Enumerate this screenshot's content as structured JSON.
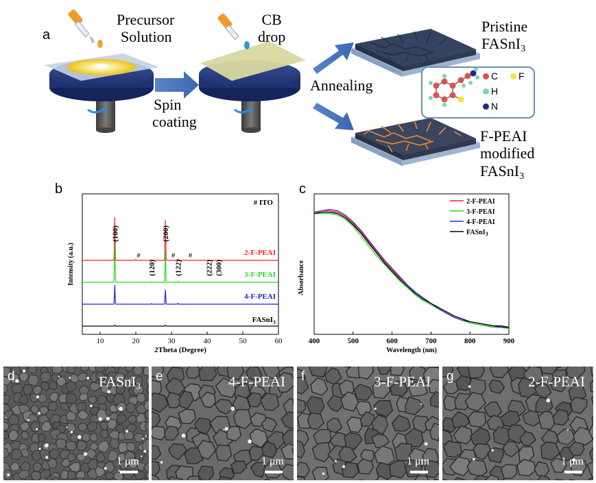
{
  "panel_a": {
    "letter": "a",
    "precursor_line1": "Precursor",
    "precursor_line2": "Solution",
    "spin_line1": "Spin",
    "spin_line2": "coating",
    "cb_line1": "CB",
    "cb_line2": "drop",
    "annealing": "Annealing",
    "pristine_line1": "Pristine",
    "pristine_line2_main": "FASnI",
    "pristine_line2_sub": "3",
    "modified_line1": "F-PEAI",
    "modified_line2": "modified",
    "modified_line3_main": "FASnI",
    "modified_line3_sub": "3",
    "molecule_legend": [
      {
        "label": "C",
        "color": "#d9534f"
      },
      {
        "label": "F",
        "color": "#f5e142"
      },
      {
        "label": "H",
        "color": "#7fd6a8"
      },
      {
        "label": "N",
        "color": "#1f2a8a"
      }
    ]
  },
  "chart_data": [
    {
      "type": "line",
      "panel": "b",
      "title": "",
      "xlabel": "2Theta (Degree)",
      "ylabel": "Intensity (a.u.)",
      "xlim": [
        5,
        60
      ],
      "xticks": [
        10,
        20,
        30,
        40,
        50,
        60
      ],
      "grid": false,
      "series": [
        {
          "name": "2-F-PEAI",
          "color": "#ff2020",
          "baseline": 4,
          "peaks": [
            [
              14.1,
              2.35
            ],
            [
              20.0,
              0.05
            ],
            [
              24.4,
              0.03
            ],
            [
              28.3,
              2.2
            ],
            [
              31.8,
              0.08
            ],
            [
              40.5,
              0.02
            ],
            [
              43.2,
              0.02
            ]
          ]
        },
        {
          "name": "3-F-PEAI",
          "color": "#22dd22",
          "baseline": 3,
          "peaks": [
            [
              14.1,
              2.1
            ],
            [
              24.4,
              0.03
            ],
            [
              28.3,
              1.75
            ],
            [
              31.8,
              0.06
            ]
          ]
        },
        {
          "name": "4-F-PEAI",
          "color": "#2222cc",
          "baseline": 2,
          "peaks": [
            [
              14.1,
              1.05
            ],
            [
              24.4,
              0.03
            ],
            [
              28.3,
              0.8
            ],
            [
              31.8,
              0.05
            ]
          ]
        },
        {
          "name": "FASnI3",
          "color": "#000000",
          "baseline": 1,
          "peaks": [
            [
              14.1,
              0.05
            ],
            [
              28.3,
              0.05
            ]
          ]
        }
      ],
      "annotations": [
        {
          "text": "(100)",
          "x": 14.1
        },
        {
          "text": "(120)",
          "x": 24.4
        },
        {
          "text": "(200)",
          "x": 28.3
        },
        {
          "text": "(122)",
          "x": 31.8
        },
        {
          "text": "(222)",
          "x": 40.5
        },
        {
          "text": "(300)",
          "x": 43.2
        }
      ],
      "ito_marks": [
        20.8,
        30.5,
        35.3
      ],
      "ito_label": "# ITO",
      "ito_symbol": "#",
      "series_labels": [
        "2-F-PEAI",
        "3-F-PEAI",
        "4-F-PEAI",
        "FASnI"
      ],
      "fasni_sub": "3"
    },
    {
      "type": "line",
      "panel": "c",
      "title": "",
      "xlabel": "Wavelength (nm)",
      "ylabel": "Absorbance",
      "xlim": [
        400,
        900
      ],
      "xticks": [
        400,
        500,
        600,
        700,
        800,
        900
      ],
      "ylim": [
        0,
        1
      ],
      "grid": false,
      "legend_position": "top-right",
      "x": [
        400,
        420,
        440,
        460,
        480,
        500,
        520,
        540,
        560,
        580,
        600,
        620,
        640,
        660,
        680,
        700,
        720,
        740,
        760,
        780,
        800,
        820,
        840,
        860,
        880,
        900
      ],
      "series": [
        {
          "name": "2-F-PEAI",
          "color": "#ff2020",
          "values": [
            0.87,
            0.88,
            0.88,
            0.87,
            0.84,
            0.79,
            0.73,
            0.66,
            0.59,
            0.52,
            0.46,
            0.4,
            0.35,
            0.3,
            0.26,
            0.22,
            0.19,
            0.16,
            0.13,
            0.11,
            0.09,
            0.08,
            0.07,
            0.06,
            0.06,
            0.05
          ]
        },
        {
          "name": "3-F-PEAI",
          "color": "#22dd22",
          "values": [
            0.86,
            0.86,
            0.86,
            0.85,
            0.82,
            0.77,
            0.7,
            0.63,
            0.56,
            0.5,
            0.44,
            0.38,
            0.33,
            0.28,
            0.24,
            0.21,
            0.18,
            0.15,
            0.12,
            0.1,
            0.08,
            0.07,
            0.06,
            0.05,
            0.05,
            0.04
          ]
        },
        {
          "name": "4-F-PEAI",
          "color": "#2a2ad0",
          "values": [
            0.87,
            0.88,
            0.89,
            0.88,
            0.85,
            0.8,
            0.74,
            0.67,
            0.6,
            0.53,
            0.47,
            0.41,
            0.35,
            0.3,
            0.26,
            0.22,
            0.18,
            0.15,
            0.12,
            0.1,
            0.09,
            0.08,
            0.07,
            0.06,
            0.05,
            0.05
          ]
        },
        {
          "name": "FASnI3",
          "color": "#000000",
          "values": [
            0.86,
            0.87,
            0.87,
            0.86,
            0.83,
            0.78,
            0.72,
            0.65,
            0.58,
            0.51,
            0.45,
            0.39,
            0.34,
            0.29,
            0.25,
            0.22,
            0.19,
            0.16,
            0.13,
            0.11,
            0.09,
            0.08,
            0.07,
            0.06,
            0.06,
            0.05
          ]
        }
      ],
      "legend_labels": [
        "2-F-PEAI",
        "3-F-PEAI",
        "4-F-PEAI",
        "FASnI"
      ],
      "fasni_sub": "3"
    }
  ],
  "panel_b": {
    "letter": "b"
  },
  "panel_c": {
    "letter": "c"
  },
  "sem_panels": [
    {
      "letter": "d",
      "label_main": "FASnI",
      "label_sub": "3",
      "scale": "1 μm",
      "tone": "#5a5a5a"
    },
    {
      "letter": "e",
      "label_main": "4-F-PEAI",
      "label_sub": "",
      "scale": "1 μm",
      "tone": "#6b6b6b"
    },
    {
      "letter": "f",
      "label_main": "3-F-PEAI",
      "label_sub": "",
      "scale": "1 μm",
      "tone": "#707070"
    },
    {
      "letter": "g",
      "label_main": "2-F-PEAI",
      "label_sub": "",
      "scale": "1 μm",
      "tone": "#6e6e6e"
    }
  ]
}
